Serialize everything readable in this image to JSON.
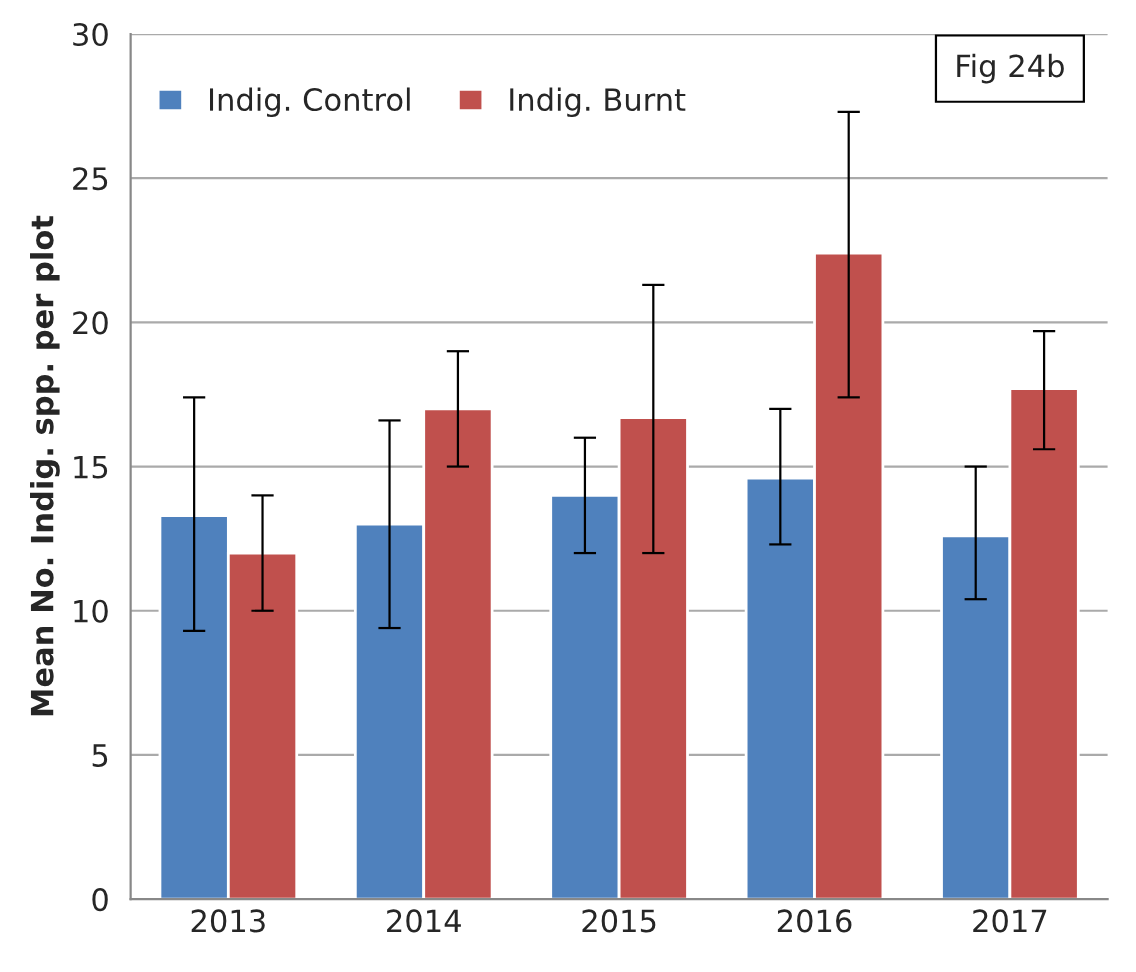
{
  "chart_data": {
    "type": "bar",
    "ylabel": "Mean No. Indig. spp. per plot",
    "categories": [
      "2013",
      "2014",
      "2015",
      "2016",
      "2017"
    ],
    "series": [
      {
        "name": "Indig. Control",
        "color": "#4f81bd",
        "values": [
          13.3,
          13.0,
          14.0,
          14.6,
          12.6
        ],
        "errors": [
          [
            9.3,
            17.4
          ],
          [
            9.4,
            16.6
          ],
          [
            12.0,
            16.0
          ],
          [
            12.3,
            17.0
          ],
          [
            10.4,
            15.0
          ]
        ]
      },
      {
        "name": "Indig. Burnt",
        "color": "#c0504d",
        "values": [
          12.0,
          17.0,
          16.7,
          22.4,
          17.7
        ],
        "errors": [
          [
            10.0,
            14.0
          ],
          [
            15.0,
            19.0
          ],
          [
            12.0,
            21.3
          ],
          [
            17.4,
            27.3
          ],
          [
            15.6,
            19.7
          ]
        ]
      }
    ],
    "ylim": [
      0,
      30
    ],
    "yticks": [
      0,
      5,
      10,
      15,
      20,
      25,
      30
    ],
    "grid": "y",
    "legend": "top left",
    "annotations": [
      "Fig 24b"
    ]
  }
}
